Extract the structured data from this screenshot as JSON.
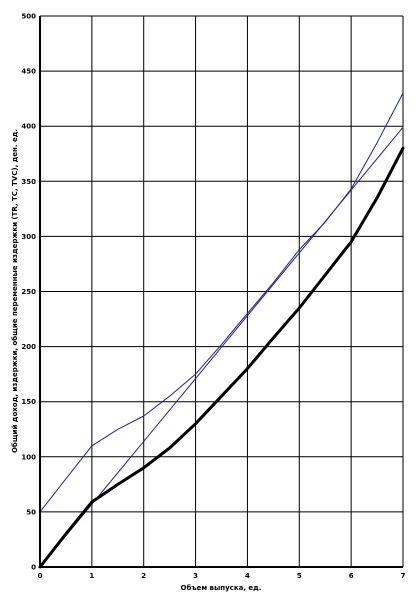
{
  "chart_data": {
    "type": "line",
    "title": "",
    "xlabel": "Объем выпуска, ед.",
    "ylabel": "Общий доход, издержки, общие переменные издержки (TR, TC, TVC), ден. ед.",
    "xlim": [
      0,
      7
    ],
    "ylim": [
      0,
      500
    ],
    "x_ticks": [
      "0",
      "1",
      "2",
      "3",
      "4",
      "5",
      "6",
      "7"
    ],
    "y_ticks": [
      "0",
      "50",
      "100",
      "150",
      "200",
      "250",
      "300",
      "350",
      "400",
      "450",
      "500"
    ],
    "grid": true,
    "legend": "none",
    "series": [
      {
        "color": "#2020a0",
        "stroke": "thin",
        "x": [
          0,
          1,
          2,
          3,
          4,
          5,
          6,
          7
        ],
        "y": [
          0,
          57,
          114,
          171,
          228,
          285,
          342,
          399
        ]
      },
      {
        "color": "#2020a0",
        "stroke": "thin",
        "x": [
          0,
          0.5,
          1,
          1.5,
          2,
          2.5,
          3,
          3.5,
          4,
          4.5,
          5,
          5.5,
          6,
          6.5,
          7
        ],
        "y": [
          50,
          80,
          110,
          125,
          137,
          155,
          175,
          202,
          230,
          258,
          288,
          313,
          343,
          385,
          430
        ]
      },
      {
        "color": "#000000",
        "stroke": "thick",
        "x": [
          0,
          0.5,
          1,
          1.5,
          2,
          2.5,
          3,
          3.5,
          4,
          4.5,
          5,
          5.5,
          6,
          6.5,
          7
        ],
        "y": [
          0,
          30,
          59,
          75,
          90,
          108,
          130,
          155,
          180,
          208,
          235,
          265,
          295,
          335,
          380
        ]
      }
    ]
  }
}
